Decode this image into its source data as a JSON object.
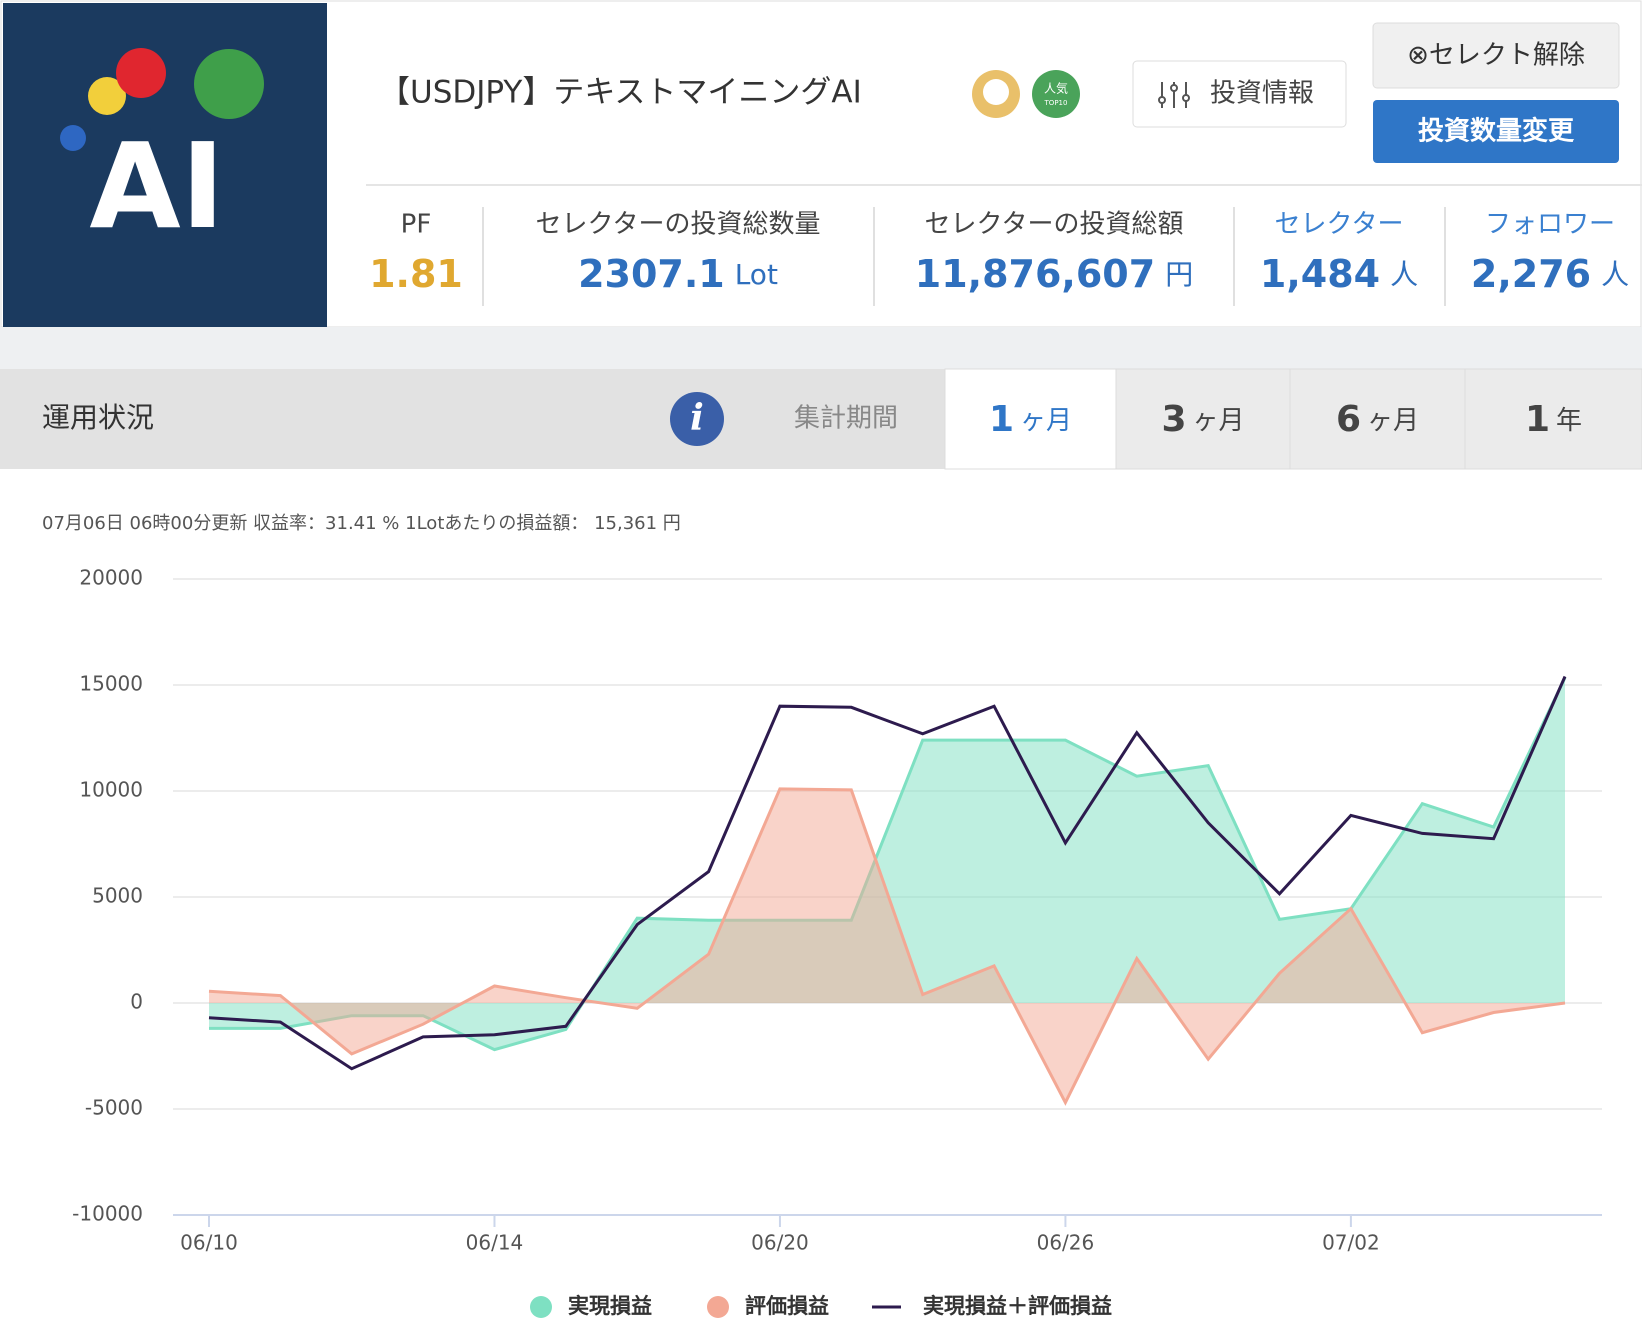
{
  "header": {
    "logo_text": "AI",
    "title": "【USDJPY】テキストマイニングAI",
    "badge": "人気",
    "badge_sub": "TOP10",
    "info_button": "投資情報",
    "deselect_button": "⊗セレクト解除",
    "change_button": "投資数量変更"
  },
  "stats": [
    {
      "label": "PF",
      "value": "1.81"
    },
    {
      "label": "セレクターの投資総数量",
      "value": "2307.1",
      "unit": "Lot"
    },
    {
      "label": "セレクターの投資総額",
      "value": "11,876,607",
      "unit": "円"
    },
    {
      "label": "セレクター",
      "value": "1,484",
      "unit": "人"
    },
    {
      "label": "フォロワー",
      "value": "2,276",
      "unit": "人"
    }
  ],
  "tabs": {
    "section": "運用状況",
    "period_label": "集計期間",
    "options": [
      {
        "num": "1",
        "unit": "ヶ月"
      },
      {
        "num": "3",
        "unit": "ヶ月"
      },
      {
        "num": "6",
        "unit": "ヶ月"
      },
      {
        "num": "1",
        "unit": "年"
      }
    ]
  },
  "summary": "07月06日 06時00分更新 収益率：31.41 % 1Lotあたりの損益額： 15,361 円",
  "chart_data": {
    "type": "line",
    "categories": [
      "06/10",
      null,
      null,
      null,
      "06/14",
      null,
      null,
      null,
      "06/20",
      null,
      null,
      null,
      "06/26",
      null,
      null,
      null,
      "07/02",
      null,
      null,
      null
    ],
    "series": [
      {
        "name": "実現損益",
        "color": "#7ee0c2",
        "fill": true,
        "values": [
          -1200,
          -1200,
          -600,
          -600,
          -2200,
          -1250,
          4000,
          3900,
          3900,
          3900,
          12400,
          12400,
          12400,
          10700,
          11200,
          3950,
          4450,
          9400,
          8300,
          15350
        ]
      },
      {
        "name": "評価損益",
        "color": "#f3a894",
        "fill": true,
        "values": [
          550,
          350,
          -2400,
          -1000,
          800,
          250,
          -250,
          2300,
          10100,
          10050,
          400,
          1750,
          -4700,
          2100,
          -2650,
          1400,
          4450,
          -1400,
          -450,
          0
        ]
      },
      {
        "name": "実現損益＋評価損益",
        "color": "#2d1b4e",
        "fill": false,
        "values": [
          -700,
          -900,
          -3100,
          -1600,
          -1500,
          -1100,
          3700,
          6200,
          14000,
          13950,
          12700,
          14000,
          7550,
          12750,
          8500,
          5150,
          8850,
          8000,
          7750,
          15400
        ]
      }
    ],
    "ylim": [
      -10000,
      20000
    ],
    "yticks": [
      -10000,
      -5000,
      0,
      5000,
      10000,
      15000,
      20000
    ],
    "grid": true
  }
}
